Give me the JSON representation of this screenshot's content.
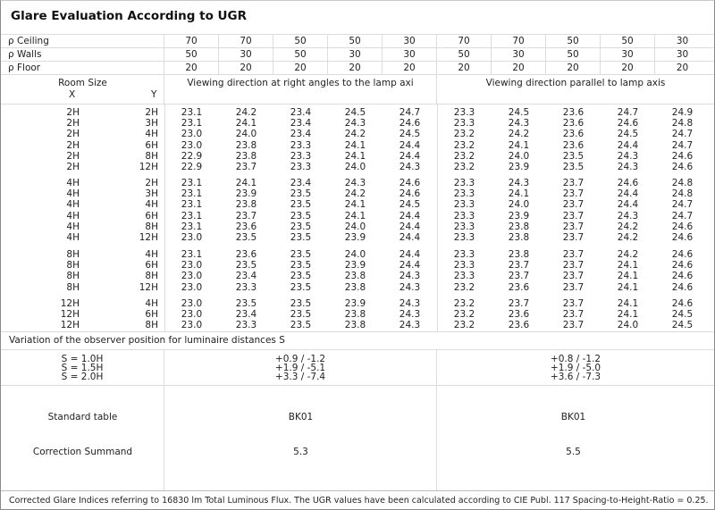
{
  "title": "Glare Evaluation According to UGR",
  "reflectances": [
    {
      "label": "ρ  Ceiling",
      "values": [
        "70",
        "70",
        "50",
        "50",
        "30",
        "70",
        "70",
        "50",
        "50",
        "30"
      ]
    },
    {
      "label": "ρ  Walls",
      "values": [
        "50",
        "30",
        "50",
        "30",
        "30",
        "50",
        "30",
        "50",
        "30",
        "30"
      ]
    },
    {
      "label": "ρ  Floor",
      "values": [
        "20",
        "20",
        "20",
        "20",
        "20",
        "20",
        "20",
        "20",
        "20",
        "20"
      ]
    }
  ],
  "header": {
    "room_size": "Room Size",
    "x": "X",
    "y": "Y",
    "right_angles": "Viewing direction at right angles to the lamp axi",
    "parallel": "Viewing direction parallel to lamp axis"
  },
  "groups": [
    {
      "rows": [
        {
          "x": "2H",
          "y": "2H",
          "v": [
            "23.1",
            "24.2",
            "23.4",
            "24.5",
            "24.7",
            "23.3",
            "24.5",
            "23.6",
            "24.7",
            "24.9"
          ]
        },
        {
          "x": "2H",
          "y": "3H",
          "v": [
            "23.1",
            "24.1",
            "23.4",
            "24.3",
            "24.6",
            "23.3",
            "24.3",
            "23.6",
            "24.6",
            "24.8"
          ]
        },
        {
          "x": "2H",
          "y": "4H",
          "v": [
            "23.0",
            "24.0",
            "23.4",
            "24.2",
            "24.5",
            "23.2",
            "24.2",
            "23.6",
            "24.5",
            "24.7"
          ]
        },
        {
          "x": "2H",
          "y": "6H",
          "v": [
            "23.0",
            "23.8",
            "23.3",
            "24.1",
            "24.4",
            "23.2",
            "24.1",
            "23.6",
            "24.4",
            "24.7"
          ]
        },
        {
          "x": "2H",
          "y": "8H",
          "v": [
            "22.9",
            "23.8",
            "23.3",
            "24.1",
            "24.4",
            "23.2",
            "24.0",
            "23.5",
            "24.3",
            "24.6"
          ]
        },
        {
          "x": "2H",
          "y": "12H",
          "v": [
            "22.9",
            "23.7",
            "23.3",
            "24.0",
            "24.3",
            "23.2",
            "23.9",
            "23.5",
            "24.3",
            "24.6"
          ]
        }
      ]
    },
    {
      "rows": [
        {
          "x": "4H",
          "y": "2H",
          "v": [
            "23.1",
            "24.1",
            "23.4",
            "24.3",
            "24.6",
            "23.3",
            "24.3",
            "23.7",
            "24.6",
            "24.8"
          ]
        },
        {
          "x": "4H",
          "y": "3H",
          "v": [
            "23.1",
            "23.9",
            "23.5",
            "24.2",
            "24.6",
            "23.3",
            "24.1",
            "23.7",
            "24.4",
            "24.8"
          ]
        },
        {
          "x": "4H",
          "y": "4H",
          "v": [
            "23.1",
            "23.8",
            "23.5",
            "24.1",
            "24.5",
            "23.3",
            "24.0",
            "23.7",
            "24.4",
            "24.7"
          ]
        },
        {
          "x": "4H",
          "y": "6H",
          "v": [
            "23.1",
            "23.7",
            "23.5",
            "24.1",
            "24.4",
            "23.3",
            "23.9",
            "23.7",
            "24.3",
            "24.7"
          ]
        },
        {
          "x": "4H",
          "y": "8H",
          "v": [
            "23.1",
            "23.6",
            "23.5",
            "24.0",
            "24.4",
            "23.3",
            "23.8",
            "23.7",
            "24.2",
            "24.6"
          ]
        },
        {
          "x": "4H",
          "y": "12H",
          "v": [
            "23.0",
            "23.5",
            "23.5",
            "23.9",
            "24.4",
            "23.3",
            "23.8",
            "23.7",
            "24.2",
            "24.6"
          ]
        }
      ]
    },
    {
      "rows": [
        {
          "x": "8H",
          "y": "4H",
          "v": [
            "23.1",
            "23.6",
            "23.5",
            "24.0",
            "24.4",
            "23.3",
            "23.8",
            "23.7",
            "24.2",
            "24.6"
          ]
        },
        {
          "x": "8H",
          "y": "6H",
          "v": [
            "23.0",
            "23.5",
            "23.5",
            "23.9",
            "24.4",
            "23.3",
            "23.7",
            "23.7",
            "24.1",
            "24.6"
          ]
        },
        {
          "x": "8H",
          "y": "8H",
          "v": [
            "23.0",
            "23.4",
            "23.5",
            "23.8",
            "24.3",
            "23.3",
            "23.7",
            "23.7",
            "24.1",
            "24.6"
          ]
        },
        {
          "x": "8H",
          "y": "12H",
          "v": [
            "23.0",
            "23.3",
            "23.5",
            "23.8",
            "24.3",
            "23.2",
            "23.6",
            "23.7",
            "24.1",
            "24.6"
          ]
        }
      ]
    },
    {
      "rows": [
        {
          "x": "12H",
          "y": "4H",
          "v": [
            "23.0",
            "23.5",
            "23.5",
            "23.9",
            "24.3",
            "23.2",
            "23.7",
            "23.7",
            "24.1",
            "24.6"
          ]
        },
        {
          "x": "12H",
          "y": "6H",
          "v": [
            "23.0",
            "23.4",
            "23.5",
            "23.8",
            "24.3",
            "23.2",
            "23.6",
            "23.7",
            "24.1",
            "24.5"
          ]
        },
        {
          "x": "12H",
          "y": "8H",
          "v": [
            "23.0",
            "23.3",
            "23.5",
            "23.8",
            "24.3",
            "23.2",
            "23.6",
            "23.7",
            "24.0",
            "24.5"
          ]
        }
      ]
    }
  ],
  "variation": {
    "label": "Variation of the observer position for luminaire distances S",
    "s_labels": [
      "S = 1.0H",
      "S = 1.5H",
      "S = 2.0H"
    ],
    "right_angles": [
      "+0.9 / -1.2",
      "+1.9 / -5.1",
      "+3.3 / -7.4"
    ],
    "parallel": [
      "+0.8 / -1.2",
      "+1.9 / -5.0",
      "+3.6 / -7.3"
    ]
  },
  "standard_table": {
    "label": "Standard table",
    "right_angles": "BK01",
    "parallel": "BK01"
  },
  "correction": {
    "label": "Correction Summand",
    "right_angles": "5.3",
    "parallel": "5.5"
  },
  "footer": "Corrected Glare Indices referring to 16830 lm Total Luminous Flux. The UGR values have been calculated according to CIE Publ. 117   Spacing-to-Height-Ratio = 0.25."
}
